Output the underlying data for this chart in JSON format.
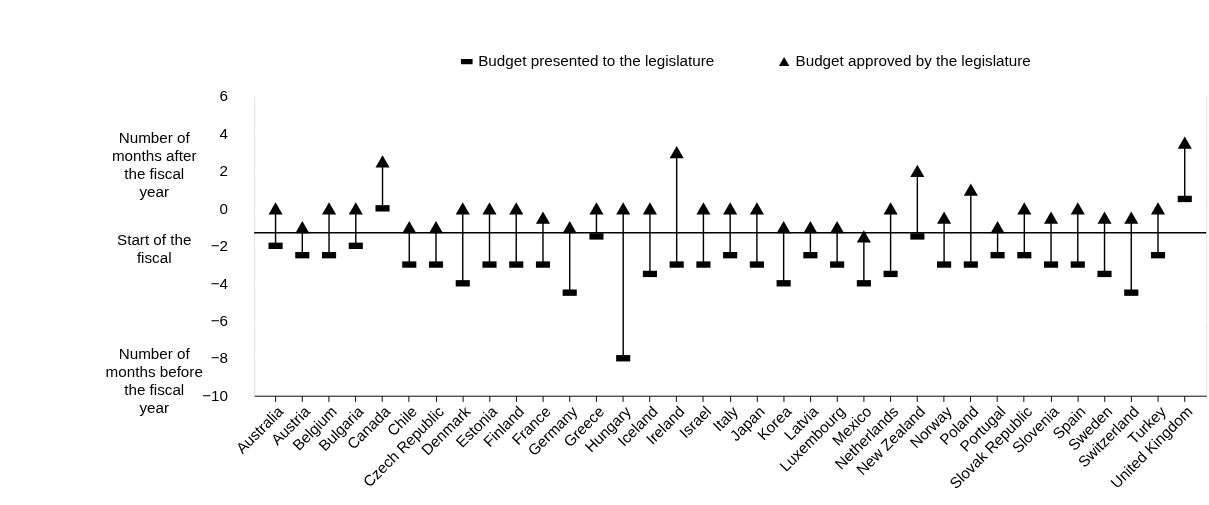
{
  "chart_data": {
    "type": "scatter",
    "categories": [
      "Australia",
      "Austria",
      "Belgium",
      "Bulgaria",
      "Canada",
      "Chile",
      "Czech Republic",
      "Denmark",
      "Estonia",
      "Finland",
      "France",
      "Germany",
      "Greece",
      "Hungary",
      "Iceland",
      "Ireland",
      "Israel",
      "Italy",
      "Japan",
      "Korea",
      "Latvia",
      "Luxembourg",
      "Mexico",
      "Netherlands",
      "New Zealand",
      "Norway",
      "Poland",
      "Portugal",
      "Slovak Republic",
      "Slovenia",
      "Spain",
      "Sweden",
      "Switzerland",
      "Turkey",
      "United Kingdom"
    ],
    "series": [
      {
        "name": "Budget presented to the legislature",
        "color": "#000000",
        "values": [
          -2,
          -2.5,
          -2.5,
          -2,
          0,
          -3,
          -3,
          -4,
          -3,
          -3,
          -3,
          -4.5,
          -1.5,
          -8,
          -3.5,
          -3,
          -3,
          -2.5,
          -3,
          -4,
          -2.5,
          -3,
          -4,
          -3.5,
          -1.5,
          -3,
          -3,
          -2.5,
          -2.5,
          -3,
          -3,
          -3.5,
          -4.5,
          -2.5,
          0.5
        ]
      },
      {
        "name": "Budget approved by the legislature",
        "color": "#000000",
        "values": [
          0,
          -1,
          0,
          0,
          2.5,
          -1,
          -1,
          0,
          0,
          0,
          -0.5,
          -1,
          0,
          0,
          0,
          3,
          0,
          0,
          0,
          -1,
          -1,
          -1,
          -1.5,
          0,
          2,
          -0.5,
          1,
          -1,
          0,
          -0.5,
          0,
          -0.5,
          -0.5,
          0,
          3.5
        ]
      }
    ],
    "ylim": [
      -10,
      6
    ],
    "yticks": [
      -10,
      -8,
      -6,
      -4,
      -2,
      0,
      2,
      4,
      6
    ],
    "grid": "y",
    "legend": "top",
    "ref_lines": [
      {
        "axis": "y",
        "value": -1.3,
        "color": "#000000"
      }
    ],
    "annotations": [
      "Number of months after the fiscal year",
      "Start of the fiscal",
      "Number of months before the fiscal year"
    ]
  }
}
